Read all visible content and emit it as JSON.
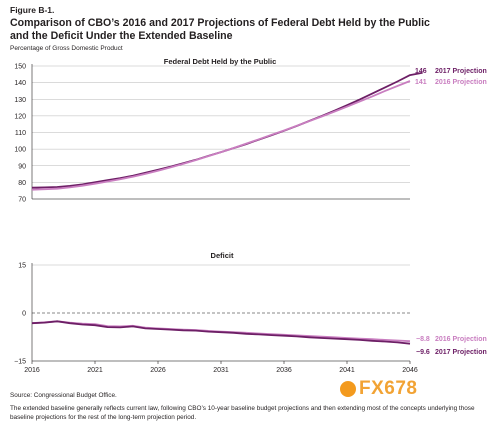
{
  "figure_label": "Figure B-1.",
  "title": "Comparison of CBO’s 2016 and 2017 Projections of Federal Debt Held by the Public and the Deficit Under the Extended Baseline",
  "unit_label": "Percentage of Gross Domestic Product",
  "source": "Source: Congressional Budget Office.",
  "note": "The extended baseline generally reflects current law, following CBO’s 10-year baseline budget projections and then extending most of the concepts underlying those baseline projections for the rest of the long-term projection period.",
  "watermark": "FX678",
  "colors": {
    "proj2017": "#6d1f66",
    "proj2016": "#c97ec0",
    "axis": "#231f20",
    "grid": "#b7b7b7"
  },
  "chart_data": [
    {
      "type": "line",
      "title": "Federal Debt Held by the Public",
      "ylabel": "Percentage of Gross Domestic Product",
      "ylim": [
        70,
        150
      ],
      "yticks": [
        70,
        80,
        90,
        100,
        110,
        120,
        130,
        140,
        150
      ],
      "series": [
        {
          "name": "2017 Projection",
          "end_label": "146",
          "x": [
            2016,
            2017,
            2018,
            2019,
            2020,
            2021,
            2022,
            2023,
            2024,
            2025,
            2026,
            2027,
            2028,
            2029,
            2030,
            2031,
            2032,
            2033,
            2034,
            2035,
            2036,
            2037,
            2038,
            2039,
            2040,
            2041,
            2042,
            2043,
            2044,
            2045,
            2046,
            2047
          ],
          "values": [
            76.8,
            77.0,
            77.2,
            77.9,
            78.8,
            80.1,
            81.3,
            82.6,
            84.0,
            85.8,
            87.6,
            89.5,
            91.5,
            93.6,
            95.9,
            98.2,
            100.6,
            103.0,
            105.7,
            108.3,
            111.0,
            113.9,
            116.9,
            120.0,
            123.1,
            126.4,
            129.8,
            133.4,
            137.0,
            140.7,
            144.5,
            146.0
          ]
        },
        {
          "name": "2016 Projection",
          "end_label": "141",
          "x": [
            2016,
            2017,
            2018,
            2019,
            2020,
            2021,
            2022,
            2023,
            2024,
            2025,
            2026,
            2027,
            2028,
            2029,
            2030,
            2031,
            2032,
            2033,
            2034,
            2035,
            2036,
            2037,
            2038,
            2039,
            2040,
            2041,
            2042,
            2043,
            2044,
            2045,
            2046
          ],
          "values": [
            75.6,
            75.9,
            76.2,
            77.0,
            78.0,
            79.2,
            80.5,
            81.9,
            83.4,
            85.1,
            87.0,
            89.0,
            91.1,
            93.4,
            95.8,
            98.2,
            100.7,
            103.3,
            105.9,
            108.6,
            111.2,
            114.0,
            116.8,
            119.6,
            122.6,
            125.5,
            128.6,
            131.7,
            134.9,
            138.0,
            141.0
          ]
        }
      ]
    },
    {
      "type": "line",
      "title": "Deficit",
      "ylim": [
        -15,
        15
      ],
      "yticks": [
        -15,
        0,
        15
      ],
      "xlim": [
        2016,
        2046
      ],
      "xticks": [
        2016,
        2021,
        2026,
        2031,
        2036,
        2041,
        2046
      ],
      "series": [
        {
          "name": "2016 Projection",
          "end_label": "−8.8",
          "x": [
            2016,
            2017,
            2018,
            2019,
            2020,
            2021,
            2022,
            2023,
            2024,
            2025,
            2026,
            2027,
            2028,
            2029,
            2030,
            2031,
            2032,
            2033,
            2034,
            2035,
            2036,
            2037,
            2038,
            2039,
            2040,
            2041,
            2042,
            2043,
            2044,
            2045,
            2046
          ],
          "values": [
            -3.2,
            -2.9,
            -2.6,
            -3.0,
            -3.3,
            -3.5,
            -4.1,
            -4.2,
            -4.0,
            -4.6,
            -4.8,
            -5.0,
            -5.2,
            -5.3,
            -5.6,
            -5.8,
            -6.0,
            -6.2,
            -6.4,
            -6.6,
            -6.8,
            -7.0,
            -7.2,
            -7.4,
            -7.6,
            -7.8,
            -8.0,
            -8.2,
            -8.4,
            -8.6,
            -8.8
          ]
        },
        {
          "name": "2017 Projection",
          "end_label": "−9.6",
          "x": [
            2016,
            2017,
            2018,
            2019,
            2020,
            2021,
            2022,
            2023,
            2024,
            2025,
            2026,
            2027,
            2028,
            2029,
            2030,
            2031,
            2032,
            2033,
            2034,
            2035,
            2036,
            2037,
            2038,
            2039,
            2040,
            2041,
            2042,
            2043,
            2044,
            2045,
            2046
          ],
          "values": [
            -3.2,
            -3.0,
            -2.6,
            -3.2,
            -3.6,
            -3.8,
            -4.4,
            -4.5,
            -4.2,
            -4.8,
            -5.0,
            -5.2,
            -5.4,
            -5.5,
            -5.8,
            -6.0,
            -6.2,
            -6.5,
            -6.7,
            -6.9,
            -7.1,
            -7.3,
            -7.6,
            -7.8,
            -8.0,
            -8.2,
            -8.4,
            -8.7,
            -8.9,
            -9.2,
            -9.6
          ]
        }
      ]
    }
  ]
}
